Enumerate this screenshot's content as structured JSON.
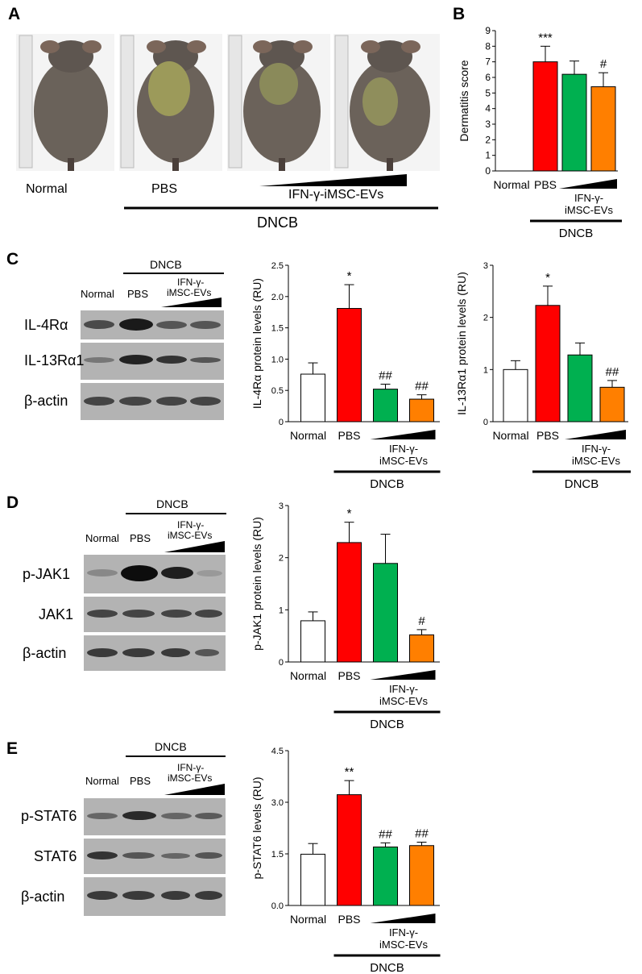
{
  "panels": {
    "A": {
      "letter": "A",
      "labels": {
        "normal": "Normal",
        "pbs": "PBS",
        "ev": "IFN-γ-iMSC-EVs",
        "dncb": "DNCB"
      }
    },
    "B": {
      "letter": "B"
    },
    "C": {
      "letter": "C",
      "blot": {
        "dncb": "DNCB",
        "normal": "Normal",
        "pbs": "PBS",
        "ev_line1": "IFN-γ-",
        "ev_line2": "iMSC-EVs",
        "rows": [
          "IL-4Rα",
          "IL-13Rα1",
          "β-actin"
        ]
      }
    },
    "D": {
      "letter": "D",
      "blot": {
        "dncb": "DNCB",
        "normal": "Normal",
        "pbs": "PBS",
        "ev_line1": "IFN-γ-",
        "ev_line2": "iMSC-EVs",
        "rows": [
          "p-JAK1",
          "JAK1",
          "β-actin"
        ]
      }
    },
    "E": {
      "letter": "E",
      "blot": {
        "dncb": "DNCB",
        "normal": "Normal",
        "pbs": "PBS",
        "ev_line1": "IFN-γ-",
        "ev_line2": "iMSC-EVs",
        "rows": [
          "p-STAT6",
          "STAT6",
          "β-actin"
        ]
      }
    }
  },
  "chart_data": [
    {
      "id": "B",
      "type": "bar",
      "ylabel": "Dermatitis score",
      "ylim": [
        0,
        9
      ],
      "yticks": [
        "0",
        "1",
        "2",
        "3",
        "4",
        "5",
        "6",
        "7",
        "8",
        "9"
      ],
      "categories": [
        "Normal",
        "PBS",
        "",
        ""
      ],
      "values": [
        0,
        7.0,
        6.2,
        5.4
      ],
      "errors": [
        0,
        1.0,
        0.85,
        0.9
      ],
      "colors": [
        "#ffffff",
        "#ff0000",
        "#00b050",
        "#ff7f00"
      ],
      "annotations": [
        "",
        "***",
        "",
        "#"
      ],
      "ev_line1": "IFN-γ-",
      "ev_line2": "iMSC-EVs",
      "group_label": "DNCB"
    },
    {
      "id": "C1",
      "type": "bar",
      "ylabel": "IL-4Rα protein levels (RU)",
      "ylim": [
        0,
        2.5
      ],
      "yticks": [
        "0",
        "0.5",
        "1.0",
        "1.5",
        "2.0",
        "2.5"
      ],
      "categories": [
        "Normal",
        "PBS",
        "",
        ""
      ],
      "values": [
        0.76,
        1.81,
        0.52,
        0.36
      ],
      "errors": [
        0.18,
        0.38,
        0.08,
        0.07
      ],
      "colors": [
        "#ffffff",
        "#ff0000",
        "#00b050",
        "#ff7f00"
      ],
      "annotations": [
        "",
        "*",
        "##",
        "##"
      ],
      "ev_line1": "IFN-γ-",
      "ev_line2": "iMSC-EVs",
      "group_label": "DNCB"
    },
    {
      "id": "C2",
      "type": "bar",
      "ylabel": "IL-13Rα1 protein levels (RU)",
      "ylim": [
        0,
        3
      ],
      "yticks": [
        "0",
        "1",
        "2",
        "3"
      ],
      "categories": [
        "Normal",
        "PBS",
        "",
        ""
      ],
      "values": [
        1.0,
        2.23,
        1.28,
        0.66
      ],
      "errors": [
        0.17,
        0.37,
        0.23,
        0.13
      ],
      "colors": [
        "#ffffff",
        "#ff0000",
        "#00b050",
        "#ff7f00"
      ],
      "annotations": [
        "",
        "*",
        "",
        "##"
      ],
      "ev_line1": "IFN-γ-",
      "ev_line2": "iMSC-EVs",
      "group_label": "DNCB"
    },
    {
      "id": "D",
      "type": "bar",
      "ylabel": "p-JAK1 protein levels (RU)",
      "ylim": [
        0,
        3
      ],
      "yticks": [
        "0",
        "1",
        "2",
        "3"
      ],
      "categories": [
        "Normal",
        "PBS",
        "",
        ""
      ],
      "values": [
        0.79,
        2.29,
        1.89,
        0.52
      ],
      "errors": [
        0.17,
        0.39,
        0.56,
        0.1
      ],
      "colors": [
        "#ffffff",
        "#ff0000",
        "#00b050",
        "#ff7f00"
      ],
      "annotations": [
        "",
        "*",
        "",
        "#"
      ],
      "ev_line1": "IFN-γ-",
      "ev_line2": "iMSC-EVs",
      "group_label": "DNCB"
    },
    {
      "id": "E",
      "type": "bar",
      "ylabel": "p-STAT6 levels (RU)",
      "ylim": [
        0,
        4.5
      ],
      "yticks": [
        "0.0",
        "1.5",
        "3.0",
        "4.5"
      ],
      "categories": [
        "Normal",
        "PBS",
        "",
        ""
      ],
      "values": [
        1.49,
        3.22,
        1.7,
        1.74
      ],
      "errors": [
        0.31,
        0.41,
        0.12,
        0.1
      ],
      "colors": [
        "#ffffff",
        "#ff0000",
        "#00b050",
        "#ff7f00"
      ],
      "annotations": [
        "",
        "**",
        "##",
        "##"
      ],
      "ev_line1": "IFN-γ-",
      "ev_line2": "iMSC-EVs",
      "group_label": "DNCB"
    }
  ]
}
